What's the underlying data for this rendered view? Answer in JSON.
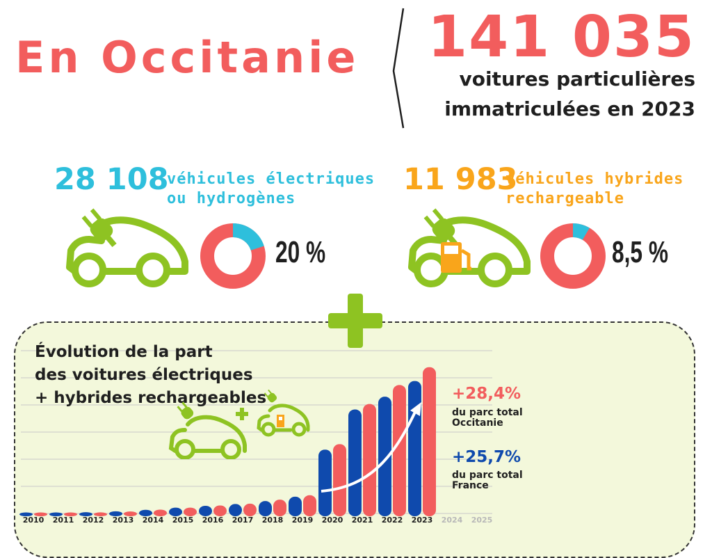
{
  "header": {
    "title": "En Occitanie",
    "total": "141 035",
    "total_line1": "voitures particulières",
    "total_line2": "immatriculées en 2023"
  },
  "stats": {
    "electric": {
      "number": "28 108",
      "label_line1": "véhicules électriques",
      "label_line2": "ou hydrogènes",
      "percent": "20 %",
      "share": 0.2,
      "color": "#2ebfdc"
    },
    "hybrid": {
      "number": "11 983",
      "label_line1": "véhicules hybrides",
      "label_line2": "rechargeable",
      "percent": "8,5 %",
      "share": 0.085,
      "color": "#f9a51b"
    }
  },
  "colors": {
    "accent_red": "#f25d5d",
    "france_blue": "#0f4aad",
    "green": "#8ec322",
    "cyan": "#2ebfdc",
    "orange": "#f9a51b",
    "panel_bg": "#f3f8db"
  },
  "icons": [
    "electric-car-icon",
    "hybrid-car-icon",
    "plus-icon",
    "fuel-pump-icon",
    "plug-icon",
    "growth-arrow-icon"
  ],
  "chart_data": {
    "type": "bar",
    "title_line1": "Évolution de la part",
    "title_line2": "des voitures électriques",
    "title_line3": "+ hybrides rechargeables",
    "categories": [
      "2010",
      "2011",
      "2012",
      "2013",
      "2014",
      "2015",
      "2016",
      "2017",
      "2018",
      "2019",
      "2020",
      "2021",
      "2022",
      "2023",
      "2024",
      "2025"
    ],
    "series": [
      {
        "color": "#0f4aad",
        "values": [
          0.05,
          0.1,
          0.35,
          0.6,
          1.0,
          1.6,
          2.1,
          2.6,
          3.4,
          4.6,
          17.5,
          28.5,
          32.0,
          36.3,
          null,
          null
        ]
      },
      {
        "color": "#f25d5d",
        "values": [
          0.05,
          0.1,
          0.3,
          0.55,
          1.05,
          1.6,
          2.2,
          2.7,
          3.8,
          5.0,
          19.0,
          30.0,
          35.2,
          40.1,
          null,
          null
        ]
      }
    ],
    "ylim": [
      0,
      45
    ],
    "grid": true,
    "annotations": [
      {
        "value": "+28,4%",
        "line1": "du parc total",
        "line2": "Occitanie",
        "color": "#f25d5d"
      },
      {
        "value": "+25,7%",
        "line1": "du parc total",
        "line2": "France",
        "color": "#0f4aad"
      }
    ]
  }
}
